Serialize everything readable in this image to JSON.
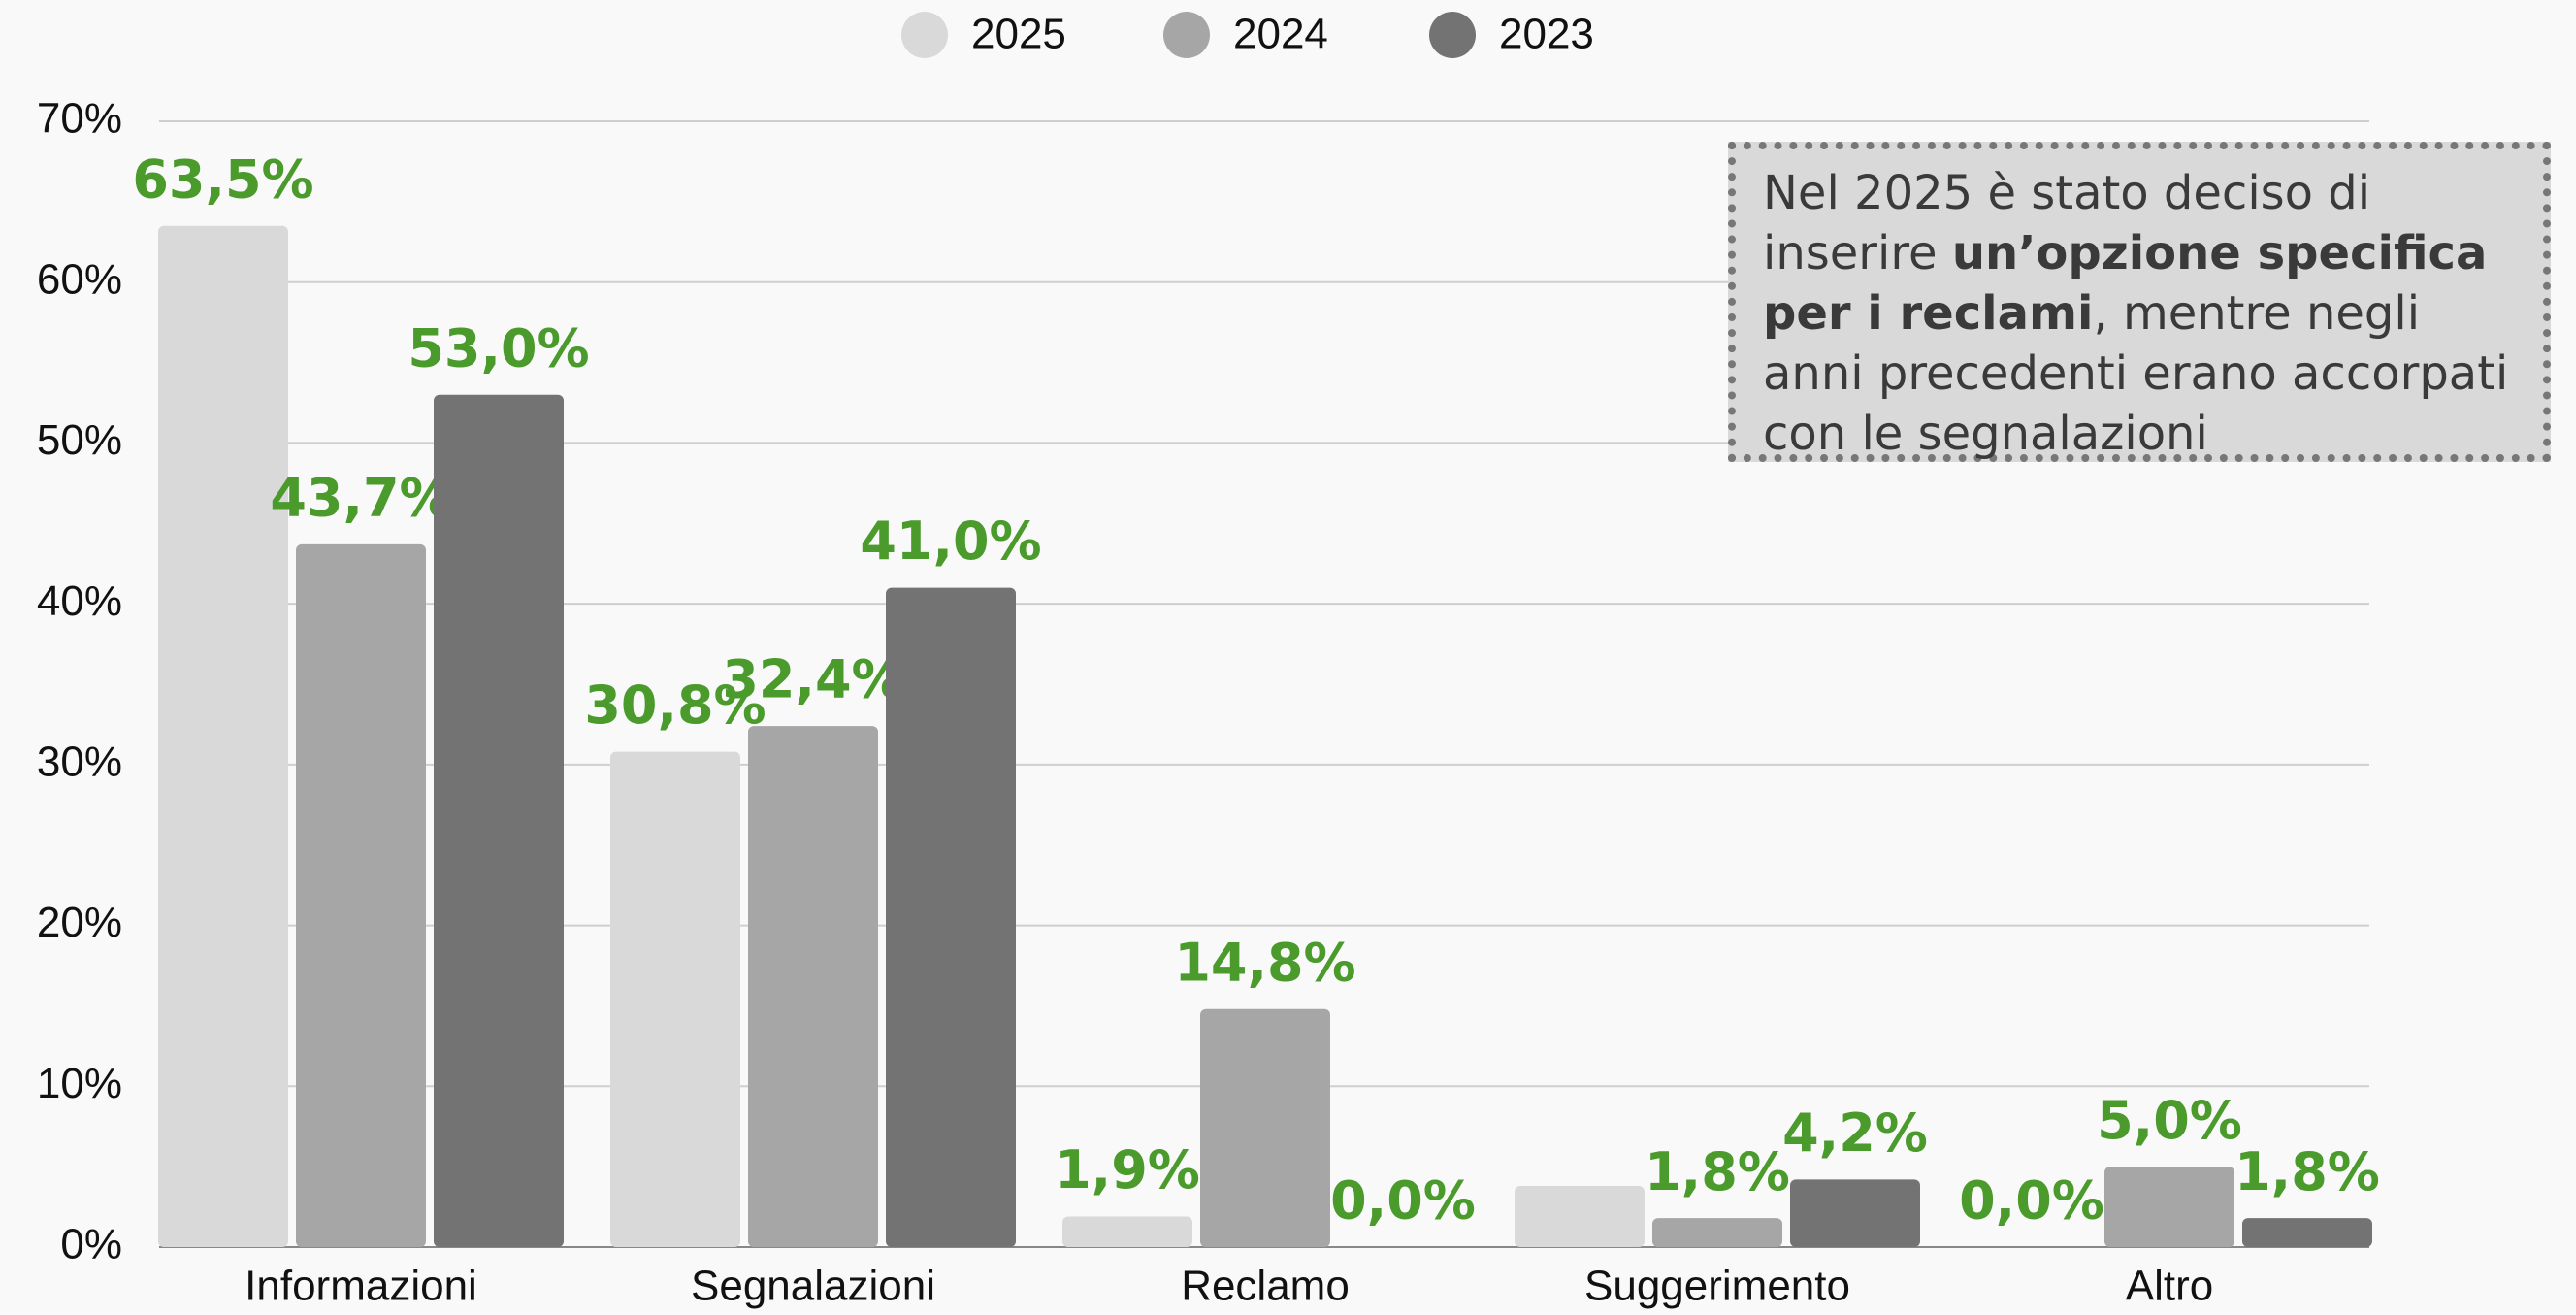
{
  "chart_data": {
    "type": "bar",
    "categories": [
      "Informazioni",
      "Segnalazioni",
      "Reclamo",
      "Suggerimento",
      "Altro"
    ],
    "series": [
      {
        "name": "2025",
        "color": "#d9d9d9",
        "values": [
          63.5,
          30.8,
          1.9,
          3.8,
          0.0
        ],
        "value_labels": [
          "63,5%",
          "30,8%",
          "1,9%",
          null,
          "0,0%"
        ]
      },
      {
        "name": "2024",
        "color": "#a6a6a6",
        "values": [
          43.7,
          32.4,
          14.8,
          1.8,
          5.0
        ],
        "value_labels": [
          "43,7%",
          "32,4%",
          "14,8%",
          "1,8%",
          "5,0%"
        ]
      },
      {
        "name": "2023",
        "color": "#737373",
        "values": [
          53.0,
          41.0,
          0.0,
          4.2,
          1.8
        ],
        "value_labels": [
          "53,0%",
          "41,0%",
          "0,0%",
          "4,2%",
          "1,8%"
        ]
      }
    ],
    "ylim": [
      0,
      70
    ],
    "yticks": [
      {
        "value": 0,
        "label": "0%"
      },
      {
        "value": 10,
        "label": "10%"
      },
      {
        "value": 20,
        "label": "20%"
      },
      {
        "value": 30,
        "label": "30%"
      },
      {
        "value": 40,
        "label": "40%"
      },
      {
        "value": 50,
        "label": "50%"
      },
      {
        "value": 60,
        "label": "60%"
      },
      {
        "value": 70,
        "label": "70%"
      }
    ],
    "grid": true,
    "legend": "top",
    "label_color": "#4a9a2c",
    "annotation": [
      "Nel 2025 è stato deciso di inserire ",
      "un’opzione specifica per i reclami",
      ", mentre negli anni precedenti erano accorpati con le segnalazioni"
    ]
  }
}
